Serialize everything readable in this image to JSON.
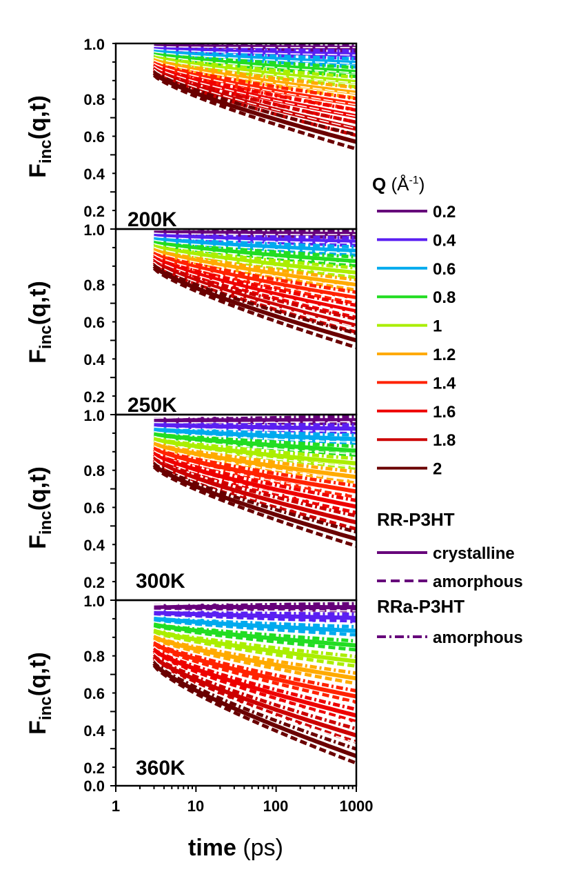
{
  "chart_data": {
    "type": "line",
    "layout": "4 vertically stacked panels sharing a logarithmic x axis",
    "x_scale": "log",
    "xlim": [
      1,
      1000
    ],
    "xticks": [
      "1",
      "10",
      "100",
      "1000"
    ],
    "xlabel_bold": "time",
    "xlabel_unit": " (ps)",
    "ylabel_main": "F",
    "ylabel_sub": "inc",
    "ylabel_rest": "(q,t)",
    "ylim": [
      0.0,
      1.0
    ],
    "yticks_top": [
      "0.2",
      "0.4",
      "0.6",
      "0.8",
      "1.0"
    ],
    "yticks_bottom": [
      "0.0",
      "0.2",
      "0.4",
      "0.6",
      "0.8",
      "1.0"
    ],
    "data_time_range_ps": [
      3,
      1000
    ],
    "panels": [
      {
        "temperature": "200K",
        "min_curve_value_at_1000ps": 0.47,
        "note": "curves decay from about 0.84-1.0 at 3 ps; highest Q reaches about 0.47 at 1000 ps"
      },
      {
        "temperature": "250K",
        "min_curve_value_at_1000ps": 0.4,
        "note": "curves decay from about 0.80-1.0 at 3 ps; highest Q reaches about 0.40 at 1000 ps"
      },
      {
        "temperature": "300K",
        "min_curve_value_at_1000ps": 0.33,
        "note": "curves decay from about 0.73-1.0 at 3 ps; highest Q reaches about 0.33 at 1000 ps"
      },
      {
        "temperature": "360K",
        "min_curve_value_at_1000ps": 0.16,
        "note": "curves decay from about 0.66-0.99 at 3 ps; highest Q reaches about 0.16 at 1000 ps"
      }
    ],
    "series": [
      {
        "name": "0.2",
        "color": "#66007a"
      },
      {
        "name": "0.4",
        "color": "#5a1ff2"
      },
      {
        "name": "0.6",
        "color": "#00aaee"
      },
      {
        "name": "0.8",
        "color": "#22dd22"
      },
      {
        "name": "1",
        "color": "#aaee00"
      },
      {
        "name": "1.2",
        "color": "#ffaa00"
      },
      {
        "name": "1.4",
        "color": "#ff2200"
      },
      {
        "name": "1.6",
        "color": "#ee0000"
      },
      {
        "name": "1.8",
        "color": "#cc0000"
      },
      {
        "name": "2",
        "color": "#6a0000"
      }
    ],
    "legend": {
      "q_title_bold": "Q",
      "q_title_unit": " (Å",
      "q_title_sup": "-1",
      "q_title_close": ")",
      "group1_title": "RR-P3HT",
      "group1_items": [
        {
          "label": "crystalline",
          "style": "solid",
          "color": "#66007a"
        },
        {
          "label": "amorphous",
          "style": "dashed",
          "color": "#66007a"
        }
      ],
      "group2_title": "RRa-P3HT",
      "group2_items": [
        {
          "label": "amorphous",
          "style": "dash-dot",
          "color": "#66007a"
        }
      ]
    }
  }
}
